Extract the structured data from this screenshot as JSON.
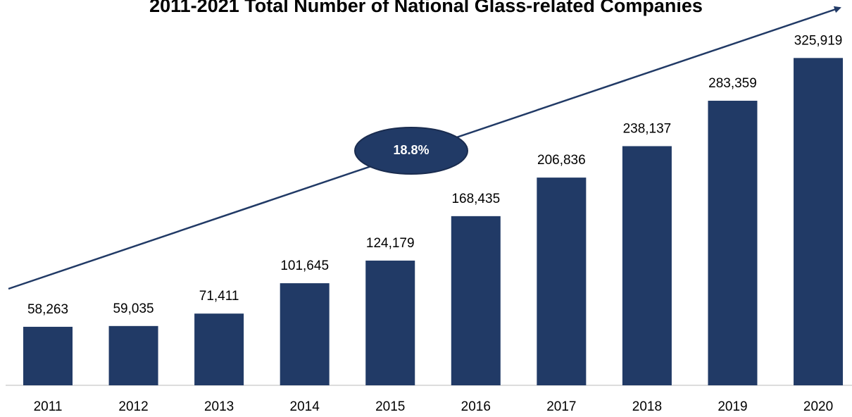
{
  "chart_data": {
    "type": "bar",
    "title": "2011-2021 Total Number of National Glass-related Companies",
    "annotations": [
      "18.8%"
    ],
    "categories": [
      "2011",
      "2012",
      "2013",
      "2014",
      "2015",
      "2016",
      "2017",
      "2018",
      "2019",
      "2020"
    ],
    "values": [
      58263,
      59035,
      71411,
      101645,
      124179,
      168435,
      206836,
      238137,
      283359,
      325919
    ],
    "value_labels": [
      "58,263",
      "59,035",
      "71,411",
      "101,645",
      "124,179",
      "168,435",
      "206,836",
      "238,137",
      "283,359",
      "325,919"
    ],
    "color": "#213a66",
    "ylim": [
      0,
      350000
    ]
  }
}
